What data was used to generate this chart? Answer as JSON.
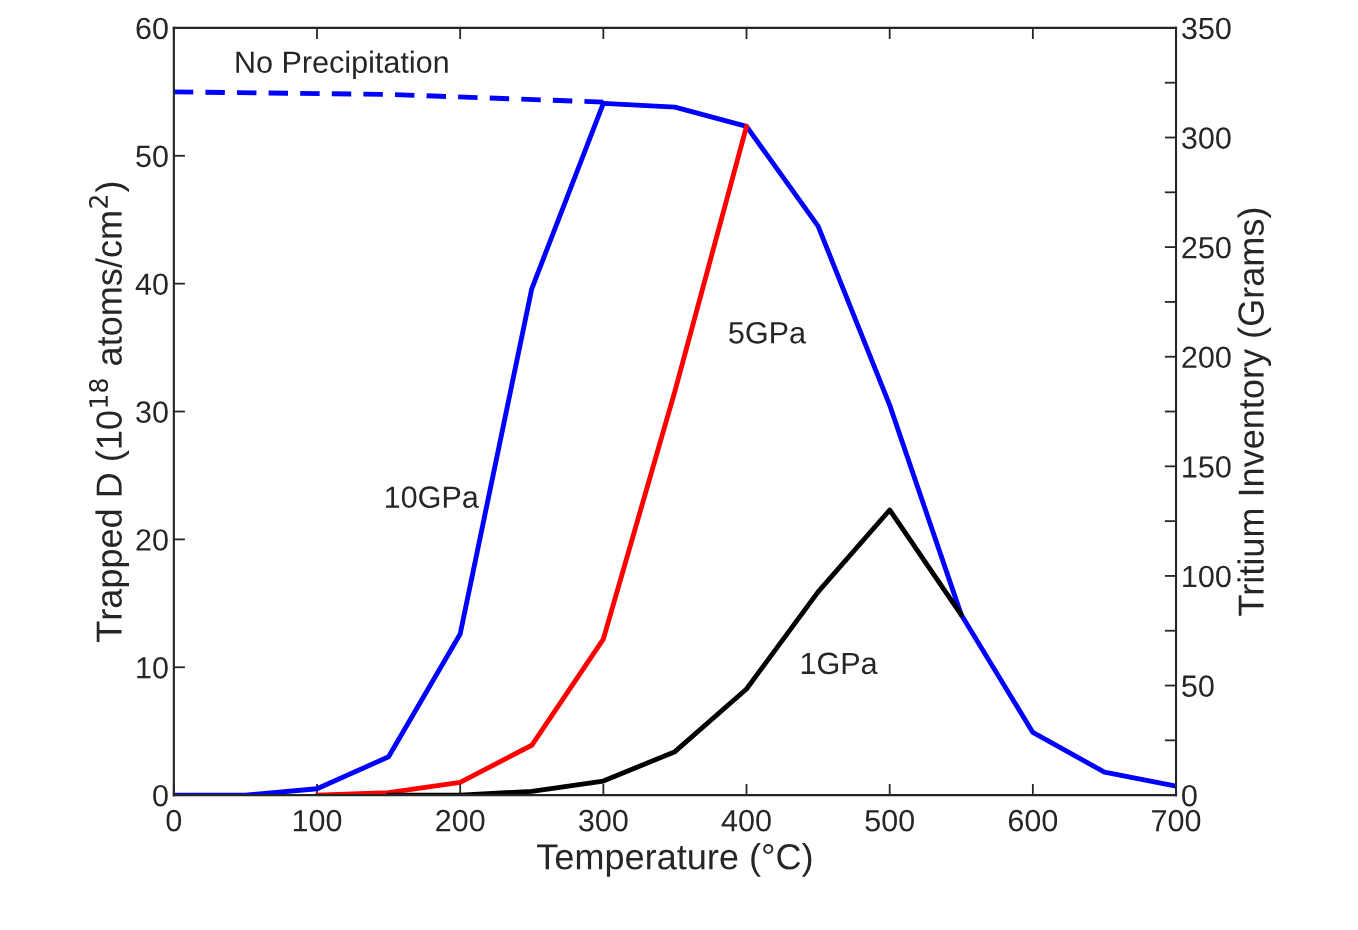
{
  "chart_data": {
    "type": "line",
    "xlabel": "Temperature (°C)",
    "ylabel": "Trapped D (10$^{18}$ atoms/cm$^{2}$)",
    "y2label": "Tritium Inventory (Grams)",
    "xlim": [
      0,
      700
    ],
    "xticks": [
      0,
      100,
      200,
      300,
      400,
      500,
      600,
      700
    ],
    "ylim": [
      0,
      60
    ],
    "yticks": [
      0,
      10,
      20,
      30,
      40,
      50,
      60
    ],
    "y2lim": [
      0,
      350
    ],
    "y2ticks": [
      0,
      {
        "value": 25,
        "label": null
      },
      50,
      {
        "value": 75,
        "label": null
      },
      100,
      {
        "value": 125,
        "label": null
      },
      150,
      {
        "value": 175,
        "label": null
      },
      200,
      {
        "value": 225,
        "label": null
      },
      250,
      {
        "value": 275,
        "label": null
      },
      300,
      {
        "value": 325,
        "label": null
      },
      350
    ],
    "grid": false,
    "legend": false,
    "series": [
      {
        "name": "10GPa",
        "color": "#0000ff",
        "x": [
          0,
          50,
          100,
          150,
          200,
          250,
          300,
          350,
          400,
          450,
          500,
          550,
          600,
          650,
          700
        ],
        "values": [
          0,
          0,
          0.5,
          3.0,
          12.6,
          39.6,
          54.1,
          53.8,
          52.3,
          44.5,
          30.5,
          14.1,
          4.9,
          1.8,
          0.7
        ]
      },
      {
        "name": "5GPa",
        "color": "#ff0000",
        "x": [
          100,
          150,
          200,
          250,
          300,
          350,
          400
        ],
        "values": [
          0,
          0.2,
          1.0,
          3.9,
          12.2,
          31.6,
          52.3
        ]
      },
      {
        "name": "1GPa",
        "color": "#000000",
        "x": [
          150,
          200,
          250,
          300,
          350,
          400,
          450,
          500,
          550
        ],
        "values": [
          0,
          0,
          0.3,
          1.1,
          3.4,
          8.3,
          15.9,
          22.3,
          14.1
        ]
      },
      {
        "name": "No Precipitation",
        "color": "#0000ff",
        "line_style": "dashed",
        "x": [
          0,
          150,
          300
        ],
        "values": [
          55.0,
          54.8,
          54.2
        ]
      }
    ]
  }
}
